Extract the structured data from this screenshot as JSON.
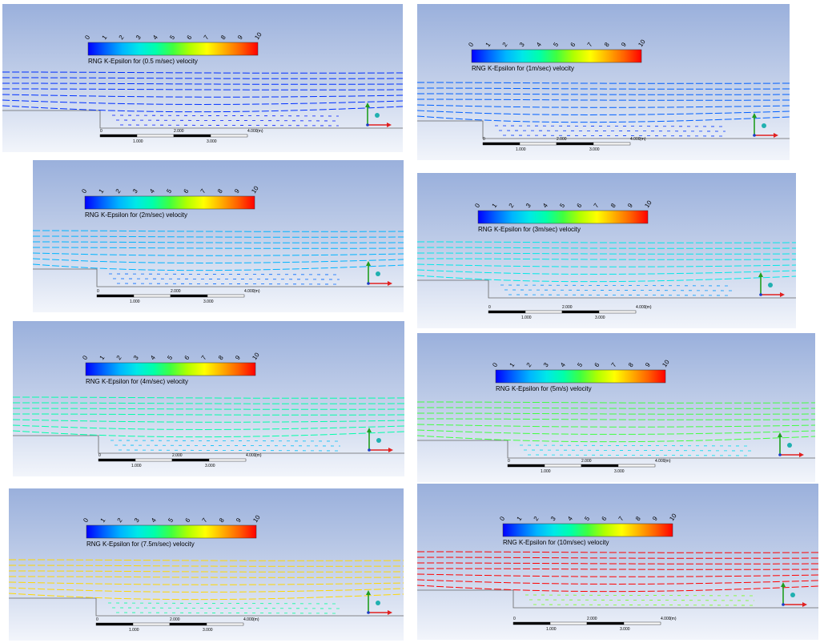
{
  "colorbar": {
    "ticks": [
      "0",
      "1",
      "2",
      "3",
      "4",
      "5",
      "6",
      "7",
      "8",
      "9",
      "10"
    ]
  },
  "scale": {
    "top": [
      "0",
      "2.000",
      "4.000"
    ],
    "unit": "(m)",
    "bottom": [
      "1.000",
      "3.000"
    ]
  },
  "panels": [
    {
      "title": "RNG K-Epsilon for (0.5 m/sec) velocity",
      "velocity": 0.5
    },
    {
      "title": "RNG K-Epsilon for (1m/sec) velocity",
      "velocity": 1
    },
    {
      "title": "RNG K-Epsilon for (2m/sec) velocity",
      "velocity": 2
    },
    {
      "title": "RNG K-Epsilon for (3m/sec) velocity",
      "velocity": 3
    },
    {
      "title": "RNG K-Epsilon for (4m/sec) velocity",
      "velocity": 4
    },
    {
      "title": "RNG K-Epsilon for (5m/s) velocity",
      "velocity": 5
    },
    {
      "title": "RNG K-Epsilon for (7.5m/sec) velocity",
      "velocity": 7.5
    },
    {
      "title": "RNG K-Epsilon for (10m/sec) velocity",
      "velocity": 10
    }
  ]
}
